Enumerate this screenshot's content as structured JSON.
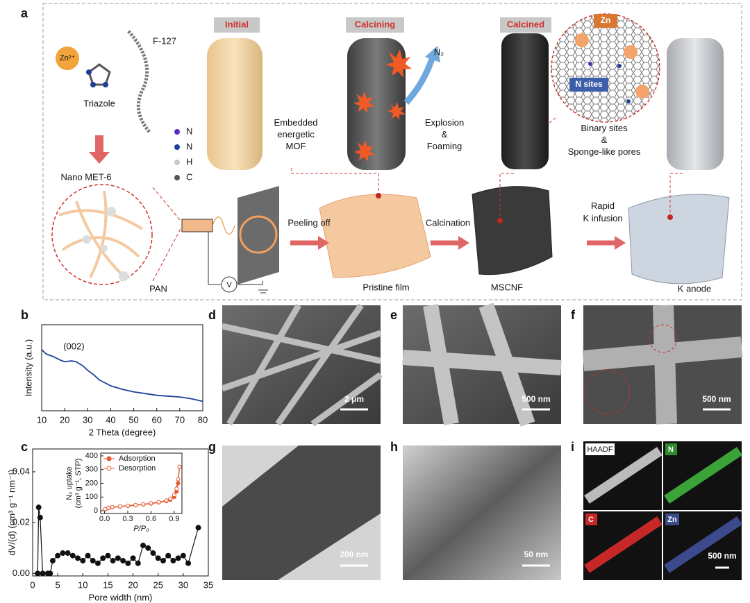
{
  "panel_labels": [
    "a",
    "b",
    "c",
    "d",
    "e",
    "f",
    "g",
    "h",
    "i"
  ],
  "schematic": {
    "stages": [
      "Initial",
      "Calcining",
      "Calcined"
    ],
    "zn_ion": "Zn²⁺",
    "triazole": "Triazole",
    "f127": "F-127",
    "atom_legend": [
      "N",
      "N",
      "H",
      "C"
    ],
    "embedded": [
      "Embedded",
      "energetic",
      "MOF"
    ],
    "n2": "N₂",
    "explosion": [
      "Explosion",
      "&",
      "Foaming"
    ],
    "zoom_zn": "Zn",
    "zoom_n_sites": "N sites",
    "binary": [
      "Binary sites",
      "&",
      "Sponge-like pores"
    ],
    "nano_met": "Nano MET-6",
    "pan": "PAN",
    "voltmeter": "V",
    "peeling": "Peeling off",
    "pristine": "Pristine film",
    "calcination": "Calcination",
    "mscnf": "MSCNF",
    "infusion": [
      "Rapid",
      "K infusion"
    ],
    "k_anode": "K anode"
  },
  "chart_data": [
    {
      "type": "line",
      "xlabel": "2 Theta (degree)",
      "ylabel": [
        "Intensity (a.u.)"
      ],
      "annotation": "(002)",
      "x": [
        10,
        12,
        15,
        18,
        20,
        23,
        25,
        28,
        30,
        33,
        35,
        40,
        45,
        50,
        55,
        60,
        65,
        70,
        75,
        80
      ],
      "values": [
        71,
        66,
        63,
        59,
        57,
        58,
        57,
        52,
        47,
        41,
        36,
        29,
        25,
        22,
        20,
        18,
        17,
        16,
        14,
        11
      ],
      "color": "#1f3f9c",
      "xlim": [
        10,
        80
      ],
      "xticks": [
        10,
        20,
        30,
        40,
        50,
        60,
        70,
        80
      ],
      "ylim": [
        0,
        100
      ]
    },
    {
      "type": "line",
      "markers": "filled",
      "xlabel": "Pore width (nm)",
      "ylabel": [
        "dV/(d) (cm³ g⁻¹ nm⁻¹)"
      ],
      "x": [
        1.0,
        1.2,
        1.5,
        2,
        3,
        3.5,
        4,
        5,
        6,
        7,
        8,
        9,
        10,
        11,
        12,
        13,
        14,
        15,
        16,
        17,
        18,
        19,
        20,
        21,
        22,
        23,
        24,
        25,
        26,
        27,
        28,
        29,
        30,
        31,
        33
      ],
      "values": [
        0.0,
        0.026,
        0.022,
        0.0,
        0.0,
        0.0,
        0.005,
        0.007,
        0.008,
        0.008,
        0.007,
        0.006,
        0.005,
        0.007,
        0.005,
        0.004,
        0.006,
        0.007,
        0.005,
        0.006,
        0.005,
        0.004,
        0.006,
        0.004,
        0.011,
        0.01,
        0.008,
        0.006,
        0.005,
        0.007,
        0.005,
        0.006,
        0.007,
        0.004,
        0.018
      ],
      "color": "#111111",
      "xlim": [
        0,
        35
      ],
      "xticks": [
        0,
        5,
        10,
        15,
        20,
        25,
        30,
        35
      ],
      "ylim": [
        -0.001,
        0.049
      ],
      "yticks": [
        {
          "value": 0,
          "label": "0.00"
        },
        {
          "value": 0.02,
          "label": "0.02"
        },
        {
          "value": 0.04,
          "label": "0.04"
        }
      ]
    },
    {
      "type": "line",
      "xlabel": "P/P₀",
      "ylabel": [
        "N₂ uptake",
        "(cm³ g⁻¹, STP)"
      ],
      "series": [
        {
          "name": "Adsorption",
          "color": "#e8572f",
          "markers": "filled",
          "x": [
            0.01,
            0.05,
            0.1,
            0.2,
            0.3,
            0.4,
            0.5,
            0.6,
            0.7,
            0.8,
            0.85,
            0.9,
            0.93,
            0.95,
            0.97
          ],
          "values": [
            10,
            20,
            25,
            30,
            35,
            40,
            45,
            52,
            60,
            70,
            80,
            100,
            140,
            200,
            320
          ]
        },
        {
          "name": "Desorption",
          "color": "#e8572f",
          "markers": "hollow",
          "x": [
            0.01,
            0.05,
            0.1,
            0.2,
            0.3,
            0.4,
            0.5,
            0.6,
            0.7,
            0.8,
            0.85,
            0.9,
            0.93,
            0.95,
            0.97
          ],
          "values": [
            12,
            22,
            27,
            32,
            37,
            42,
            47,
            55,
            63,
            75,
            88,
            115,
            160,
            230,
            320
          ]
        }
      ],
      "xlim": [
        -0.05,
        1.0
      ],
      "xticks": [
        {
          "value": 0,
          "label": "0.0"
        },
        {
          "value": 0.3,
          "label": "0.3"
        },
        {
          "value": 0.6,
          "label": "0.6"
        },
        {
          "value": 0.9,
          "label": "0.9"
        }
      ],
      "ylim": [
        -20,
        420
      ],
      "yticks": [
        0,
        100,
        200,
        300,
        400
      ]
    }
  ],
  "micrographs": {
    "d": "2 μm",
    "e": "500 nm",
    "f": "500 nm",
    "g": "200 nm",
    "h": "50 nm",
    "i_channels": [
      "HAADF",
      "N",
      "C",
      "Zn"
    ],
    "i": "500 nm"
  }
}
